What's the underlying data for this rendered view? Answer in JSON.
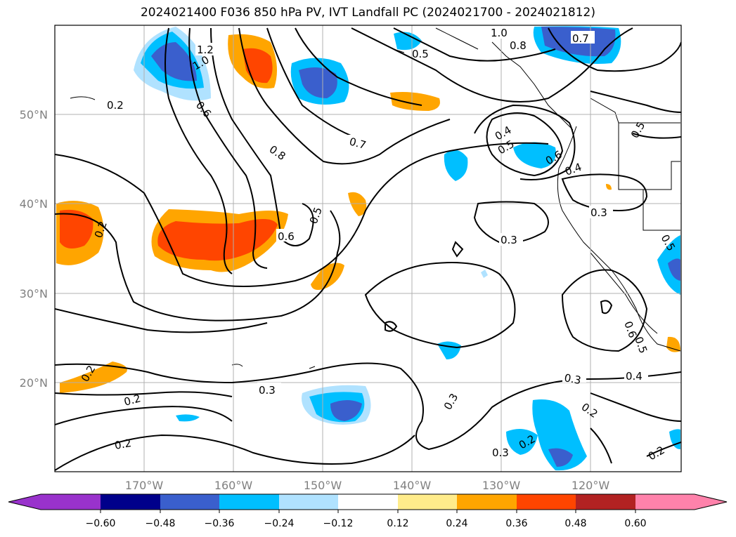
{
  "title": "2024021400 F036 850 hPa PV, IVT Landfall PC (2024021700 - 2024021812)",
  "map": {
    "lon_ticks": [
      "170°W",
      "160°W",
      "150°W",
      "140°W",
      "130°W",
      "120°W"
    ],
    "lat_ticks": [
      "50°N",
      "40°N",
      "30°N",
      "20°N"
    ],
    "contour_labels": [
      "1.0",
      "0.7",
      "0.8",
      "1.2",
      "1.0",
      "0.5",
      "0.2",
      "0.6",
      "0.8",
      "0.7",
      "0.4",
      "0.5",
      "0.5",
      "0.4",
      "0.6",
      "0.5",
      "0.2",
      "0.6",
      "0.5",
      "0.3",
      "0.3",
      "0.2",
      "0.3",
      "0.2",
      "0.2",
      "0.3",
      "0.3",
      "0.4",
      "0.2",
      "0.2",
      "0.2",
      "0.3",
      "0.6",
      "0.5"
    ]
  },
  "colorbar": {
    "ticks": [
      "−0.60",
      "−0.48",
      "−0.36",
      "−0.24",
      "−0.12",
      "0.12",
      "0.24",
      "0.36",
      "0.48",
      "0.60"
    ],
    "colors": [
      "#9932cc",
      "#00008b",
      "#3a5fcd",
      "#00bfff",
      "#b0e2ff",
      "#ffffff",
      "#ffec8b",
      "#ffa500",
      "#ff4500",
      "#b22222",
      "#ff82ab"
    ]
  }
}
